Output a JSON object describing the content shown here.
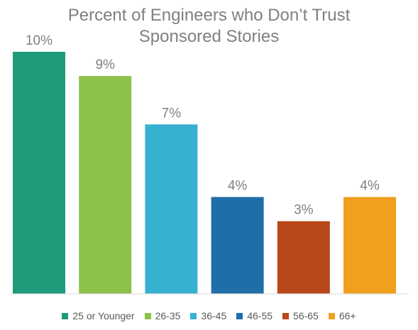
{
  "chart_data": {
    "type": "bar",
    "title_lines": [
      "Percent of Engineers who Don’t Trust",
      "Sponsored Stories"
    ],
    "categories": [
      "25 or Younger",
      "26-35",
      "36-45",
      "46-55",
      "56-65",
      "66+"
    ],
    "values": [
      10,
      9,
      7,
      4,
      3,
      4
    ],
    "data_labels": [
      "10%",
      "9%",
      "7%",
      "4%",
      "3%",
      "4%"
    ],
    "colors": [
      "#1e9b7b",
      "#8dc24a",
      "#38b0d1",
      "#1f6ea8",
      "#b84819",
      "#f0a01e"
    ],
    "ylim": [
      0,
      10
    ],
    "legend_position": "bottom",
    "grid": false
  }
}
